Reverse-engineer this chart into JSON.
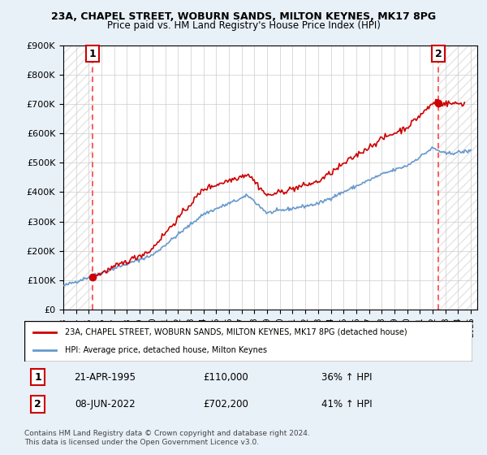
{
  "title": "23A, CHAPEL STREET, WOBURN SANDS, MILTON KEYNES, MK17 8PG",
  "subtitle": "Price paid vs. HM Land Registry's House Price Index (HPI)",
  "ylabel": "",
  "ylim": [
    0,
    900000
  ],
  "yticks": [
    0,
    100000,
    200000,
    300000,
    400000,
    500000,
    600000,
    700000,
    800000,
    900000
  ],
  "ytick_labels": [
    "£0",
    "£100K",
    "£200K",
    "£300K",
    "£400K",
    "£500K",
    "£600K",
    "£700K",
    "£800K",
    "£900K"
  ],
  "xlim_start": 1993.0,
  "xlim_end": 2025.5,
  "hpi_color": "#6699cc",
  "price_color": "#cc0000",
  "dashed_line_color": "#ff4444",
  "background_color": "#e8f0f8",
  "plot_bg_color": "#ffffff",
  "sale1_x": 1995.31,
  "sale1_y": 110000,
  "sale1_label": "1",
  "sale1_date": "21-APR-1995",
  "sale1_price": "£110,000",
  "sale1_hpi": "36% ↑ HPI",
  "sale2_x": 2022.44,
  "sale2_y": 702200,
  "sale2_label": "2",
  "sale2_date": "08-JUN-2022",
  "sale2_price": "£702,200",
  "sale2_hpi": "41% ↑ HPI",
  "legend_line1": "23A, CHAPEL STREET, WOBURN SANDS, MILTON KEYNES, MK17 8PG (detached house)",
  "legend_line2": "HPI: Average price, detached house, Milton Keynes",
  "footer": "Contains HM Land Registry data © Crown copyright and database right 2024.\nThis data is licensed under the Open Government Licence v3.0.",
  "xtick_years": [
    1993,
    1994,
    1995,
    1996,
    1997,
    1998,
    1999,
    2000,
    2001,
    2002,
    2003,
    2004,
    2005,
    2006,
    2007,
    2008,
    2009,
    2010,
    2011,
    2012,
    2013,
    2014,
    2015,
    2016,
    2017,
    2018,
    2019,
    2020,
    2021,
    2022,
    2023,
    2024,
    2025
  ]
}
